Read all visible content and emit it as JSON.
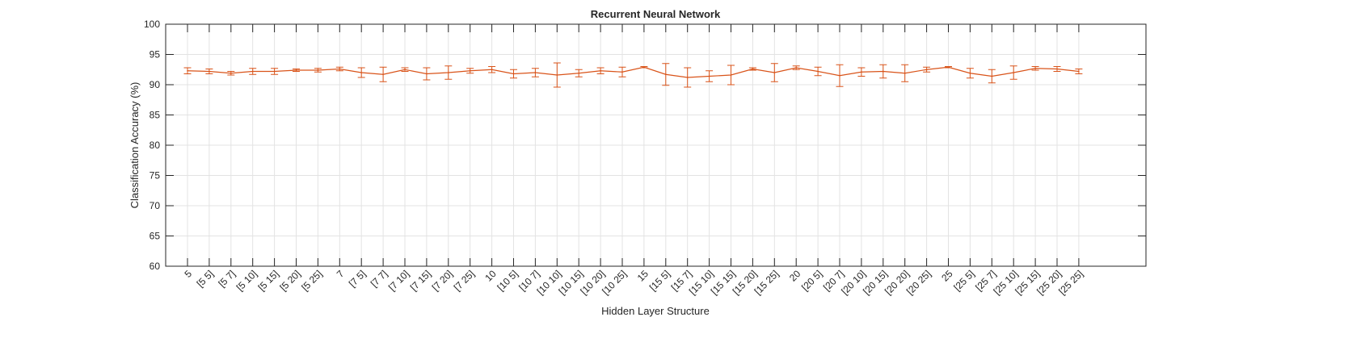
{
  "chart_data": {
    "type": "line",
    "title": "Recurrent Neural Network",
    "xlabel": "Hidden Layer Structure",
    "ylabel": "Classification Accuracy (%)",
    "ylim": [
      60,
      100
    ],
    "yticks": [
      60,
      65,
      70,
      75,
      80,
      85,
      90,
      95,
      100
    ],
    "grid": true,
    "legend": "none",
    "series_color": "#d95319",
    "categories": [
      "5",
      "[5 5]",
      "[5 7]",
      "[5 10]",
      "[5 15]",
      "[5 20]",
      "[5 25]",
      "7",
      "[7 5]",
      "[7 7]",
      "[7 10]",
      "[7 15]",
      "[7 20]",
      "[7 25]",
      "10",
      "[10 5]",
      "[10 7]",
      "[10 10]",
      "[10 15]",
      "[10 20]",
      "[10 25]",
      "15",
      "[15 5]",
      "[15 7]",
      "[15 10]",
      "[15 15]",
      "[15 20]",
      "[15 25]",
      "20",
      "[20 5]",
      "[20 7]",
      "[20 10]",
      "[20 15]",
      "[20 20]",
      "[20 25]",
      "25",
      "[25 5]",
      "[25 7]",
      "[25 10]",
      "[25 15]",
      "[25 20]",
      "[25 25]"
    ],
    "series": [
      {
        "values": [
          92.3,
          92.2,
          91.9,
          92.2,
          92.2,
          92.4,
          92.4,
          92.6,
          92.0,
          91.7,
          92.5,
          91.8,
          92.0,
          92.3,
          92.5,
          91.8,
          92.0,
          91.6,
          91.9,
          92.3,
          92.1,
          92.9,
          91.7,
          91.2,
          91.4,
          91.6,
          92.6,
          92.0,
          92.8,
          92.2,
          91.5,
          92.1,
          92.2,
          91.9,
          92.5,
          92.9,
          91.9,
          91.4,
          92.0,
          92.7,
          92.6,
          92.2
        ],
        "error": [
          0.5,
          0.4,
          0.3,
          0.5,
          0.5,
          0.2,
          0.3,
          0.3,
          0.8,
          1.2,
          0.3,
          1.0,
          1.1,
          0.4,
          0.5,
          0.7,
          0.7,
          2.0,
          0.6,
          0.5,
          0.8,
          0.1,
          1.8,
          1.6,
          0.9,
          1.6,
          0.2,
          1.5,
          0.3,
          0.7,
          1.8,
          0.7,
          1.1,
          1.4,
          0.4,
          0.1,
          0.8,
          1.1,
          1.1,
          0.3,
          0.4,
          0.4
        ]
      }
    ]
  }
}
